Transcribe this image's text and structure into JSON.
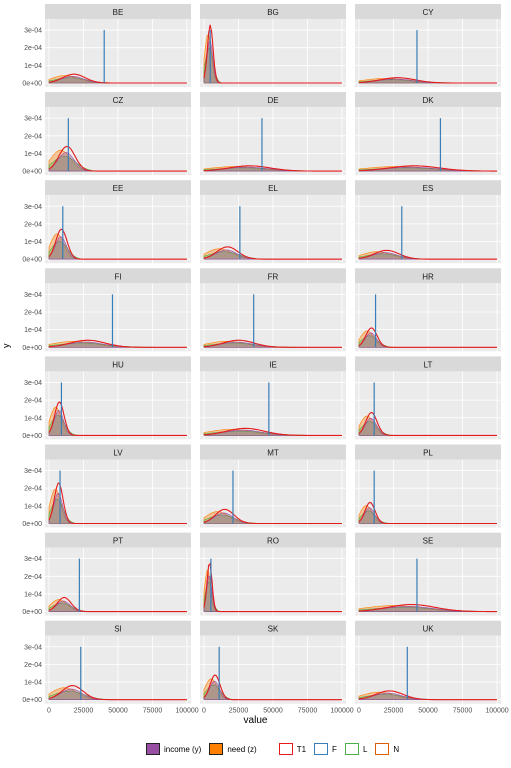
{
  "chart_data": {
    "type": "area",
    "facet_layout": "8 rows x 3 columns",
    "xlabel": "value",
    "ylabel": "y",
    "xlim": [
      0,
      100000
    ],
    "ylim": [
      0,
      0.00034
    ],
    "x_ticks": [
      0,
      25000,
      50000,
      75000,
      100000
    ],
    "x_tick_labels": [
      "0",
      "25000",
      "50000",
      "75000",
      "100000"
    ],
    "y_ticks": [
      0,
      0.0001,
      0.0002,
      0.0003
    ],
    "y_tick_labels": [
      "0e+00",
      "1e-04",
      "2e-04",
      "3e-04"
    ],
    "grid": true,
    "legend_position": "bottom",
    "legend": {
      "fill": [
        {
          "label": "income (y)",
          "color": "#984ea3"
        },
        {
          "label": "need (z)",
          "color": "#ff7f00"
        }
      ],
      "line": [
        {
          "label": "T1",
          "color": "#e41a1c"
        },
        {
          "label": "F",
          "color": "#377eb8"
        },
        {
          "label": "L",
          "color": "#4daf4a"
        },
        {
          "label": "N",
          "color": "#d95f02"
        }
      ]
    },
    "colors": {
      "income": "#984ea3",
      "need": "#ff7f00",
      "T1": "#e41a1c",
      "F": "#377eb8",
      "L": "#4daf4a",
      "N": "#d95f02",
      "panel_bg": "#ebebeb",
      "strip_bg": "#d9d9d9",
      "grid": "#ffffff"
    },
    "panels": [
      {
        "label": "BE",
        "peak_x": 18000,
        "peak_y": 5e-05,
        "threshold": 40000
      },
      {
        "label": "BG",
        "peak_x": 4500,
        "peak_y": 0.00033,
        "threshold": 4500
      },
      {
        "label": "CY",
        "peak_x": 28000,
        "peak_y": 3e-05,
        "threshold": 42000
      },
      {
        "label": "CZ",
        "peak_x": 13000,
        "peak_y": 0.00014,
        "threshold": 14000
      },
      {
        "label": "DE",
        "peak_x": 33000,
        "peak_y": 3e-05,
        "threshold": 42000
      },
      {
        "label": "DK",
        "peak_x": 40000,
        "peak_y": 3e-05,
        "threshold": 59000
      },
      {
        "label": "EE",
        "peak_x": 9000,
        "peak_y": 0.00017,
        "threshold": 10000
      },
      {
        "label": "EL",
        "peak_x": 17000,
        "peak_y": 7e-05,
        "threshold": 26000
      },
      {
        "label": "ES",
        "peak_x": 20000,
        "peak_y": 5e-05,
        "threshold": 31000
      },
      {
        "label": "FI",
        "peak_x": 28000,
        "peak_y": 4e-05,
        "threshold": 46000
      },
      {
        "label": "FR",
        "peak_x": 25000,
        "peak_y": 4e-05,
        "threshold": 36000
      },
      {
        "label": "HR",
        "peak_x": 9000,
        "peak_y": 0.00011,
        "threshold": 12000
      },
      {
        "label": "HU",
        "peak_x": 7500,
        "peak_y": 0.00019,
        "threshold": 9000
      },
      {
        "label": "IE",
        "peak_x": 30000,
        "peak_y": 4e-05,
        "threshold": 47000
      },
      {
        "label": "LT",
        "peak_x": 9000,
        "peak_y": 0.00013,
        "threshold": 11000
      },
      {
        "label": "LV",
        "peak_x": 7000,
        "peak_y": 0.00023,
        "threshold": 8000
      },
      {
        "label": "MT",
        "peak_x": 15000,
        "peak_y": 8e-05,
        "threshold": 21000
      },
      {
        "label": "PL",
        "peak_x": 8000,
        "peak_y": 0.00012,
        "threshold": 11000
      },
      {
        "label": "PT",
        "peak_x": 11000,
        "peak_y": 8e-05,
        "threshold": 22000
      },
      {
        "label": "RO",
        "peak_x": 4000,
        "peak_y": 0.00028,
        "threshold": 5000
      },
      {
        "label": "SE",
        "peak_x": 38000,
        "peak_y": 4e-05,
        "threshold": 42000
      },
      {
        "label": "SI",
        "peak_x": 17000,
        "peak_y": 8e-05,
        "threshold": 23000
      },
      {
        "label": "SK",
        "peak_x": 8000,
        "peak_y": 0.00014,
        "threshold": 11000
      },
      {
        "label": "UK",
        "peak_x": 22000,
        "peak_y": 5e-05,
        "threshold": 35000
      }
    ]
  }
}
